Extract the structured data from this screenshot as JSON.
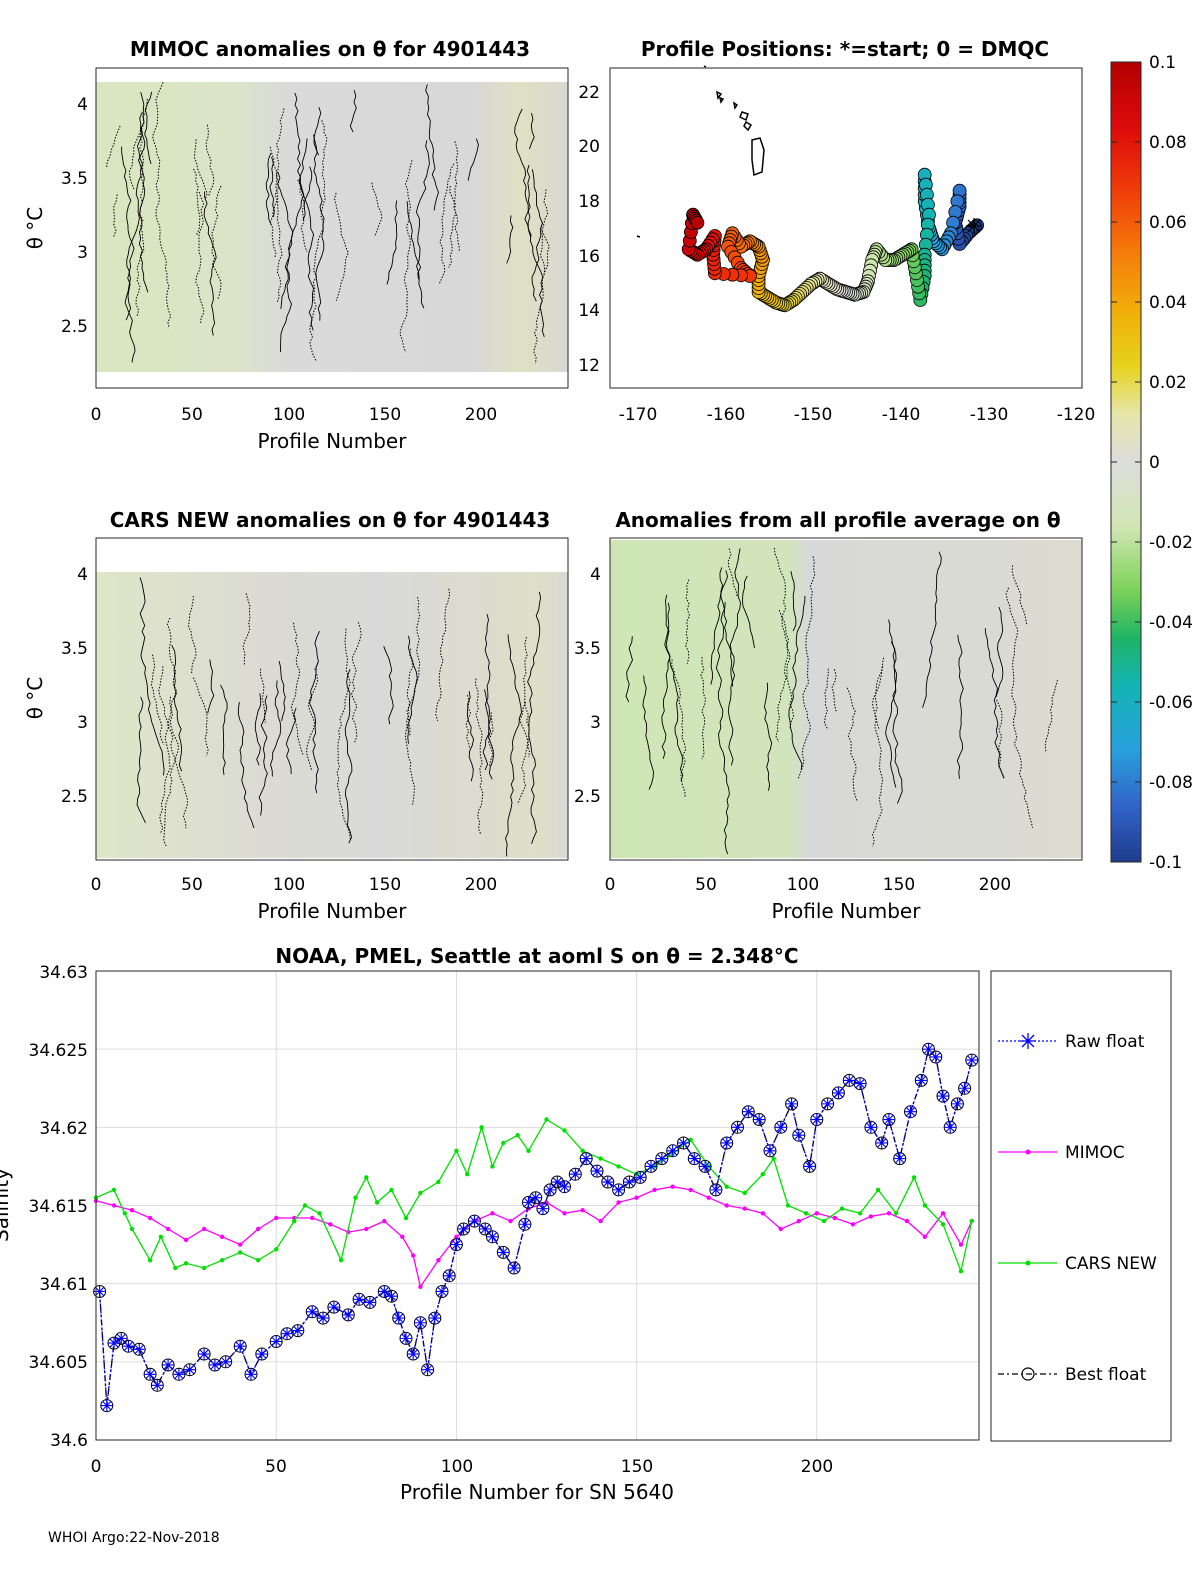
{
  "footer": "WHOI Argo:22-Nov-2018",
  "top_left": {
    "title": "MIMOC anomalies on θ  for 4901443",
    "ylabel": "θ °C",
    "xlabel": "Profile Number",
    "xticks": [
      "0",
      "50",
      "100",
      "150",
      "200"
    ],
    "yticks": [
      "2.5",
      "3",
      "3.5",
      "4"
    ]
  },
  "map": {
    "title": "Profile Positions: *=start; 0 = DMQC",
    "xticks": [
      "-170",
      "-160",
      "-150",
      "-140",
      "-130",
      "-120"
    ],
    "yticks": [
      "12",
      "14",
      "16",
      "18",
      "20",
      "22"
    ]
  },
  "colorbar": {
    "ticks": [
      "0.1",
      "0.08",
      "0.06",
      "0.04",
      "0.02",
      "0",
      "-0.02",
      "-0.04",
      "-0.06",
      "-0.08",
      "-0.1"
    ]
  },
  "mid_left": {
    "title": "CARS NEW anomalies on θ for 4901443",
    "ylabel": "θ °C",
    "xlabel": "Profile Number",
    "xticks": [
      "0",
      "50",
      "100",
      "150",
      "200"
    ],
    "yticks": [
      "2.5",
      "3",
      "3.5",
      "4"
    ]
  },
  "mid_right": {
    "title": "Anomalies from all profile average on θ",
    "xlabel": "Profile Number",
    "xticks": [
      "0",
      "50",
      "100",
      "150",
      "200"
    ],
    "yticks": [
      "2.5",
      "3",
      "3.5",
      "4"
    ]
  },
  "bottom": {
    "title": "NOAA, PMEL, Seattle at aoml S on θ = 2.348°C",
    "xlabel": "Profile Number for SN 5640",
    "ylabel": "Salinity",
    "xticks": [
      "0",
      "50",
      "100",
      "150",
      "200"
    ],
    "yticks": [
      "34.6",
      "34.605",
      "34.61",
      "34.615",
      "34.62",
      "34.625",
      "34.63"
    ],
    "legend": [
      "Raw float",
      "MIMOC",
      "CARS NEW",
      "Best float"
    ]
  },
  "chart_data": [
    {
      "type": "heatmap",
      "title": "MIMOC anomalies on θ  for 4901443",
      "xlabel": "Profile Number",
      "ylabel": "θ °C",
      "xlim": [
        0,
        245
      ],
      "ylim": [
        2.05,
        4.2
      ],
      "clim": [
        -0.1,
        0.1
      ],
      "note": "anomaly field mostly near 0 (grey) with slight negative (green) values for profiles 0-80"
    },
    {
      "type": "scatter",
      "title": "Profile Positions: *=start; 0 = DMQC",
      "xlim": [
        -172,
        -118
      ],
      "ylim": [
        11,
        23
      ],
      "track": [
        [
          -130,
          17.1
        ],
        [
          -131,
          16.8
        ],
        [
          -132,
          16.4
        ],
        [
          -132.5,
          17.2
        ],
        [
          -132,
          17.8
        ],
        [
          -132,
          18.4
        ],
        [
          -133,
          16.8
        ],
        [
          -134,
          16.2
        ],
        [
          -135,
          16.5
        ],
        [
          -135.5,
          17.0
        ],
        [
          -136,
          18.0
        ],
        [
          -136,
          19.0
        ],
        [
          -135.5,
          17.5
        ],
        [
          -136,
          16.0
        ],
        [
          -136,
          15.2
        ],
        [
          -136.5,
          14.3
        ],
        [
          -137,
          15.3
        ],
        [
          -137.5,
          16.2
        ],
        [
          -138.5,
          16.0
        ],
        [
          -139.5,
          15.8
        ],
        [
          -140.5,
          15.8
        ],
        [
          -141.5,
          16.2
        ],
        [
          -142,
          15.8
        ],
        [
          -142.5,
          15.0
        ],
        [
          -143,
          14.6
        ],
        [
          -144,
          14.5
        ],
        [
          -145,
          14.6
        ],
        [
          -146,
          14.7
        ],
        [
          -147,
          14.9
        ],
        [
          -148,
          15.1
        ],
        [
          -149,
          14.9
        ],
        [
          -150,
          14.6
        ],
        [
          -151,
          14.3
        ],
        [
          -152,
          14.1
        ],
        [
          -153,
          14.2
        ],
        [
          -154,
          14.4
        ],
        [
          -155,
          14.6
        ],
        [
          -155,
          15.2
        ],
        [
          -154.5,
          15.8
        ],
        [
          -155,
          16.3
        ],
        [
          -156,
          16.5
        ],
        [
          -157,
          16.3
        ],
        [
          -158,
          16.8
        ],
        [
          -158.5,
          16.3
        ],
        [
          -157,
          15.5
        ],
        [
          -156,
          15.2
        ],
        [
          -160,
          15.3
        ],
        [
          -160.2,
          16.0
        ],
        [
          -160,
          16.7
        ],
        [
          -161,
          16.2
        ],
        [
          -162,
          16.0
        ],
        [
          -163,
          16.2
        ],
        [
          -162.5,
          17.5
        ],
        [
          -162,
          17.2
        ]
      ],
      "color_scale": "anomaly colormap from -0.1 (blue) to 0.1 (red); start near -130 (blue), end near -162 (red)"
    },
    {
      "type": "heatmap",
      "title": "CARS NEW anomalies on θ for 4901443",
      "xlabel": "Profile Number",
      "ylabel": "θ °C",
      "xlim": [
        0,
        245
      ],
      "ylim": [
        2.05,
        4.25
      ],
      "clim": [
        -0.1,
        0.1
      ]
    },
    {
      "type": "heatmap",
      "title": "Anomalies from all profile average on θ",
      "xlabel": "Profile Number",
      "xlim": [
        0,
        245
      ],
      "ylim": [
        2.05,
        4.25
      ],
      "clim": [
        -0.1,
        0.1
      ]
    },
    {
      "type": "line",
      "title": "NOAA, PMEL, Seattle at aoml S on θ = 2.348°C",
      "xlabel": "Profile Number for SN 5640",
      "ylabel": "Salinity",
      "xlim": [
        0,
        245
      ],
      "ylim": [
        34.6,
        34.63
      ],
      "series": [
        {
          "name": "Raw float",
          "x": [
            1,
            3,
            5,
            7,
            9,
            12,
            15,
            17,
            20,
            23,
            26,
            30,
            33,
            36,
            40,
            43,
            46,
            50,
            53,
            56,
            60,
            63,
            66,
            70,
            73,
            76,
            80,
            82,
            84,
            86,
            88,
            90,
            92,
            94,
            96,
            98,
            100,
            102,
            105,
            108,
            110,
            113,
            116,
            119,
            120,
            122,
            124,
            126,
            128,
            130,
            133,
            136,
            139,
            142,
            145,
            148,
            151,
            154,
            157,
            160,
            163,
            166,
            169,
            172,
            175,
            178,
            181,
            184,
            187,
            190,
            193,
            195,
            198,
            200,
            203,
            206,
            209,
            212,
            215,
            218,
            220,
            223,
            226,
            229,
            231,
            233,
            235,
            237,
            239,
            241,
            243
          ],
          "values": [
            34.6095,
            34.6022,
            34.6062,
            34.6065,
            34.606,
            34.6058,
            34.6042,
            34.6035,
            34.6048,
            34.6042,
            34.6045,
            34.6055,
            34.6048,
            34.605,
            34.606,
            34.6042,
            34.6055,
            34.6063,
            34.6068,
            34.607,
            34.6082,
            34.6078,
            34.6085,
            34.608,
            34.609,
            34.6088,
            34.6095,
            34.6092,
            34.6078,
            34.6065,
            34.6055,
            34.6075,
            34.6045,
            34.6078,
            34.6095,
            34.6105,
            34.6125,
            34.6135,
            34.614,
            34.6135,
            34.613,
            34.612,
            34.611,
            34.6138,
            34.6152,
            34.6155,
            34.6148,
            34.616,
            34.6165,
            34.6162,
            34.617,
            34.618,
            34.6172,
            34.6165,
            34.616,
            34.6165,
            34.6168,
            34.6175,
            34.618,
            34.6185,
            34.619,
            34.618,
            34.6175,
            34.616,
            34.619,
            34.62,
            34.621,
            34.6205,
            34.6185,
            34.62,
            34.6215,
            34.6195,
            34.6175,
            34.6205,
            34.6215,
            34.6222,
            34.623,
            34.6228,
            34.62,
            34.619,
            34.6205,
            34.618,
            34.621,
            34.623,
            34.625,
            34.6245,
            34.622,
            34.62,
            34.6215,
            34.6225,
            34.6243
          ]
        },
        {
          "name": "MIMOC",
          "x": [
            0,
            5,
            10,
            15,
            20,
            25,
            30,
            35,
            40,
            45,
            50,
            55,
            60,
            65,
            70,
            75,
            80,
            85,
            88,
            90,
            95,
            100,
            105,
            110,
            115,
            120,
            125,
            130,
            135,
            140,
            145,
            150,
            155,
            160,
            165,
            170,
            175,
            180,
            185,
            190,
            195,
            200,
            205,
            210,
            215,
            220,
            225,
            230,
            235,
            240,
            243
          ],
          "values": [
            34.6153,
            34.615,
            34.6147,
            34.6142,
            34.6135,
            34.6128,
            34.6135,
            34.613,
            34.6125,
            34.6135,
            34.6142,
            34.6142,
            34.6142,
            34.6138,
            34.6133,
            34.6135,
            34.614,
            34.613,
            34.6118,
            34.6098,
            34.6115,
            34.613,
            34.614,
            34.6145,
            34.614,
            34.6148,
            34.6152,
            34.6145,
            34.6147,
            34.614,
            34.6152,
            34.6155,
            34.616,
            34.6162,
            34.616,
            34.6155,
            34.615,
            34.6148,
            34.6145,
            34.6135,
            34.614,
            34.6145,
            34.6142,
            34.6138,
            34.6143,
            34.6145,
            34.614,
            34.613,
            34.6145,
            34.6125,
            34.614
          ]
        },
        {
          "name": "CARS NEW",
          "x": [
            0,
            5,
            8,
            10,
            15,
            18,
            22,
            25,
            30,
            35,
            40,
            45,
            50,
            55,
            58,
            62,
            68,
            72,
            75,
            78,
            82,
            86,
            90,
            95,
            100,
            103,
            107,
            110,
            113,
            117,
            120,
            125,
            130,
            135,
            140,
            145,
            150,
            155,
            160,
            165,
            170,
            175,
            180,
            185,
            188,
            192,
            197,
            202,
            207,
            212,
            217,
            222,
            227,
            230,
            235,
            240,
            243
          ],
          "values": [
            34.6155,
            34.616,
            34.6145,
            34.6135,
            34.6115,
            34.613,
            34.611,
            34.6113,
            34.611,
            34.6115,
            34.612,
            34.6115,
            34.6122,
            34.614,
            34.615,
            34.6145,
            34.6115,
            34.6155,
            34.6168,
            34.6152,
            34.616,
            34.6142,
            34.6158,
            34.6165,
            34.6185,
            34.617,
            34.62,
            34.6175,
            34.619,
            34.6195,
            34.6185,
            34.6205,
            34.6198,
            34.6185,
            34.618,
            34.6175,
            34.617,
            34.6175,
            34.6183,
            34.6192,
            34.6175,
            34.6162,
            34.6158,
            34.617,
            34.618,
            34.615,
            34.6145,
            34.614,
            34.6148,
            34.6145,
            34.616,
            34.6145,
            34.6168,
            34.615,
            34.6138,
            34.6108,
            34.614
          ]
        },
        {
          "name": "Best float",
          "x": [
            1,
            3,
            5,
            7,
            9,
            12,
            15,
            17,
            20,
            23,
            26,
            30,
            33,
            36,
            40,
            43,
            46,
            50,
            53,
            56,
            60,
            63,
            66,
            70,
            73,
            76,
            80,
            82,
            84,
            86,
            88,
            90,
            92,
            94,
            96,
            98,
            100,
            102,
            105,
            108,
            110,
            113,
            116,
            119,
            120,
            122,
            124,
            126,
            128,
            130,
            133,
            136,
            139,
            142,
            145,
            148,
            151,
            154,
            157,
            160,
            163,
            166,
            169,
            172,
            175,
            178,
            181,
            184,
            187,
            190,
            193,
            195,
            198,
            200,
            203,
            206,
            209,
            212,
            215,
            218,
            220,
            223,
            226,
            229,
            231,
            233,
            235,
            237,
            239,
            241,
            243
          ],
          "values": [
            34.6095,
            34.6022,
            34.6062,
            34.6065,
            34.606,
            34.6058,
            34.6042,
            34.6035,
            34.6048,
            34.6042,
            34.6045,
            34.6055,
            34.6048,
            34.605,
            34.606,
            34.6042,
            34.6055,
            34.6063,
            34.6068,
            34.607,
            34.6082,
            34.6078,
            34.6085,
            34.608,
            34.609,
            34.6088,
            34.6095,
            34.6092,
            34.6078,
            34.6065,
            34.6055,
            34.6075,
            34.6045,
            34.6078,
            34.6095,
            34.6105,
            34.6125,
            34.6135,
            34.614,
            34.6135,
            34.613,
            34.612,
            34.611,
            34.6138,
            34.6152,
            34.6155,
            34.6148,
            34.616,
            34.6165,
            34.6162,
            34.617,
            34.618,
            34.6172,
            34.6165,
            34.616,
            34.6165,
            34.6168,
            34.6175,
            34.618,
            34.6185,
            34.619,
            34.618,
            34.6175,
            34.616,
            34.619,
            34.62,
            34.621,
            34.6205,
            34.6185,
            34.62,
            34.6215,
            34.6195,
            34.6175,
            34.6205,
            34.6215,
            34.6222,
            34.623,
            34.6228,
            34.62,
            34.619,
            34.6205,
            34.618,
            34.621,
            34.623,
            34.625,
            34.6245,
            34.622,
            34.62,
            34.6215,
            34.6225,
            34.6243
          ]
        }
      ],
      "colors": {
        "raw": "#0000ff",
        "mimoc": "#ff00ff",
        "cars": "#00e000",
        "best": "#000000"
      }
    }
  ]
}
